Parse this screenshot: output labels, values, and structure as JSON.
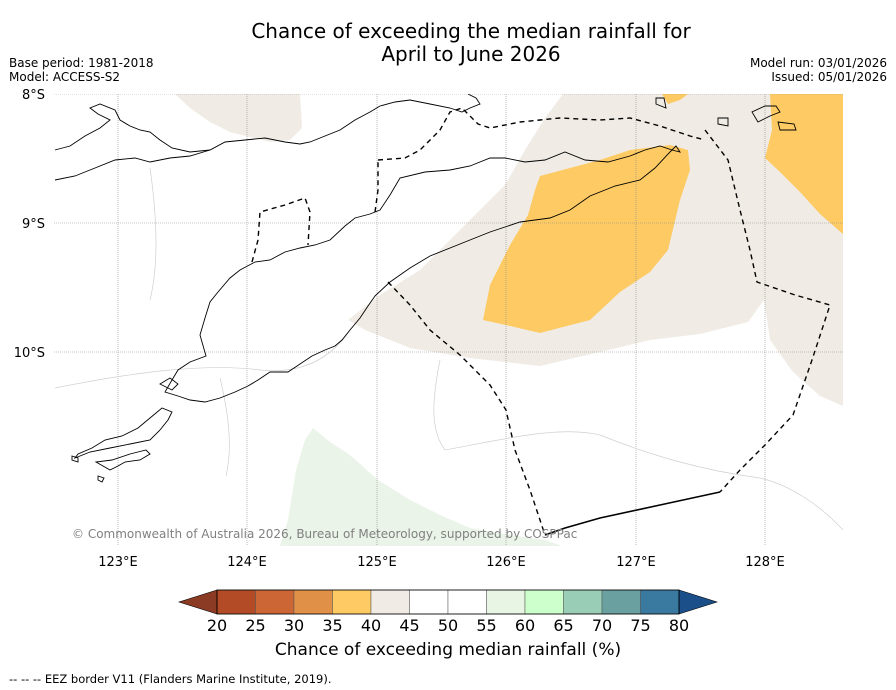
{
  "header": {
    "title_line1": "Chance of exceeding the median rainfall for",
    "title_line2": "April to June 2026",
    "base_period": "Base period: 1981-2018",
    "model": "Model: ACCESS-S2",
    "model_run": "Model run: 03/01/2026",
    "issued": "Issued: 05/01/2026"
  },
  "map": {
    "lat_labels": [
      "8°S",
      "9°S",
      "10°S"
    ],
    "lon_labels": [
      "123°E",
      "124°E",
      "125°E",
      "126°E",
      "127°E",
      "128°E"
    ],
    "copyright": "© Commonwealth of Australia 2026, Bureau of Meteorology, supported by COSPPac",
    "colors": {
      "below_35_40": "#fdca63",
      "neutral_40_45": "#f0ece5",
      "above_55_60": "#eaf4e8",
      "coast": "#000000",
      "grid": "#8c8c8c"
    }
  },
  "colorbar": {
    "ticks": [
      "20",
      "25",
      "30",
      "35",
      "40",
      "45",
      "50",
      "55",
      "60",
      "65",
      "70",
      "75",
      "80"
    ],
    "colors": [
      "#b44b27",
      "#cc6635",
      "#e09147",
      "#fdca63",
      "#f0ece5",
      "#ffffff",
      "#ffffff",
      "#e8f5e5",
      "#ccffcc",
      "#99cdb5",
      "#6aa0a0",
      "#3b7aa0"
    ],
    "under_color": "#8b3a23",
    "over_color": "#1a4f8a",
    "label": "Chance of exceeding median rainfall (%)"
  },
  "footnote": "-- -- -- EEZ border V11 (Flanders Marine Institute, 2019)."
}
